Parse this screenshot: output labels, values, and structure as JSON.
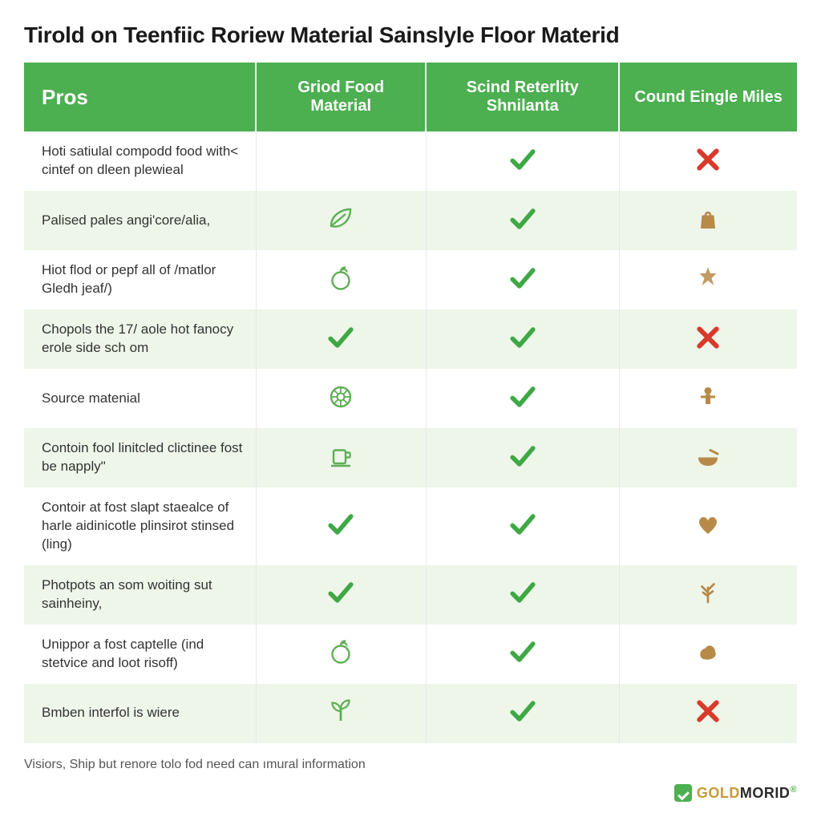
{
  "title": "Tirold on Teenfiic Roriew Material Sainslyle Floor Materid",
  "columns": [
    "Pros",
    "Griod Food Material",
    "Scind Reterlity Shnilanta",
    "Cound Eingle Miles"
  ],
  "colors": {
    "header_bg": "#4CAF50",
    "header_text": "#ffffff",
    "row_alt_bg": "#eef6e9",
    "row_bg": "#ffffff",
    "check": "#3fa845",
    "cross": "#d83a2b",
    "deco_green": "#5fae55",
    "deco_tan": "#b78a4a",
    "text": "#333333",
    "title_color": "#1a1a1a",
    "footer_text": "#555555"
  },
  "rows": [
    {
      "label": "Hoti satiulal compodd food with< cintef on dleen plewieal",
      "c1": "",
      "c2": "check",
      "c3": "cross"
    },
    {
      "label": "Palised pales angi'core/alia,",
      "c1": "leaf",
      "c2": "check",
      "c3": "bag-tan"
    },
    {
      "label": "Hiot flod or pepf all of /matlor Gledh jeaf/)",
      "c1": "fruit",
      "c2": "check",
      "c3": "leaf-tan"
    },
    {
      "label": "Chopols the 17/ aole hot fanocy erole side sch om",
      "c1": "check",
      "c2": "check",
      "c3": "cross"
    },
    {
      "label": "Source matenial",
      "c1": "wheel",
      "c2": "check",
      "c3": "person-tan"
    },
    {
      "label": "Contoin fool linitcled clictinee fost be napply\"",
      "c1": "cup",
      "c2": "check",
      "c3": "bowl-tan"
    },
    {
      "label": "Contoir at fost slapt staealce of harle aidinicotle plinsirot stinsed (ling)",
      "c1": "check",
      "c2": "check",
      "c3": "heart-tan"
    },
    {
      "label": "Photpots an som woiting sut sainheiny,",
      "c1": "check",
      "c2": "check",
      "c3": "plant-tan"
    },
    {
      "label": "Unippor a fost captelle (ind stetvice and loot risoff)",
      "c1": "fruit",
      "c2": "check",
      "c3": "blob-tan"
    },
    {
      "label": "Bmben interfol is wiere",
      "c1": "sprout",
      "c2": "check",
      "c3": "cross"
    }
  ],
  "footer": "Visiors, Ship but renore tolo fod need can ımural information",
  "brand": {
    "part1": "GOLD",
    "part2": "MORID"
  }
}
